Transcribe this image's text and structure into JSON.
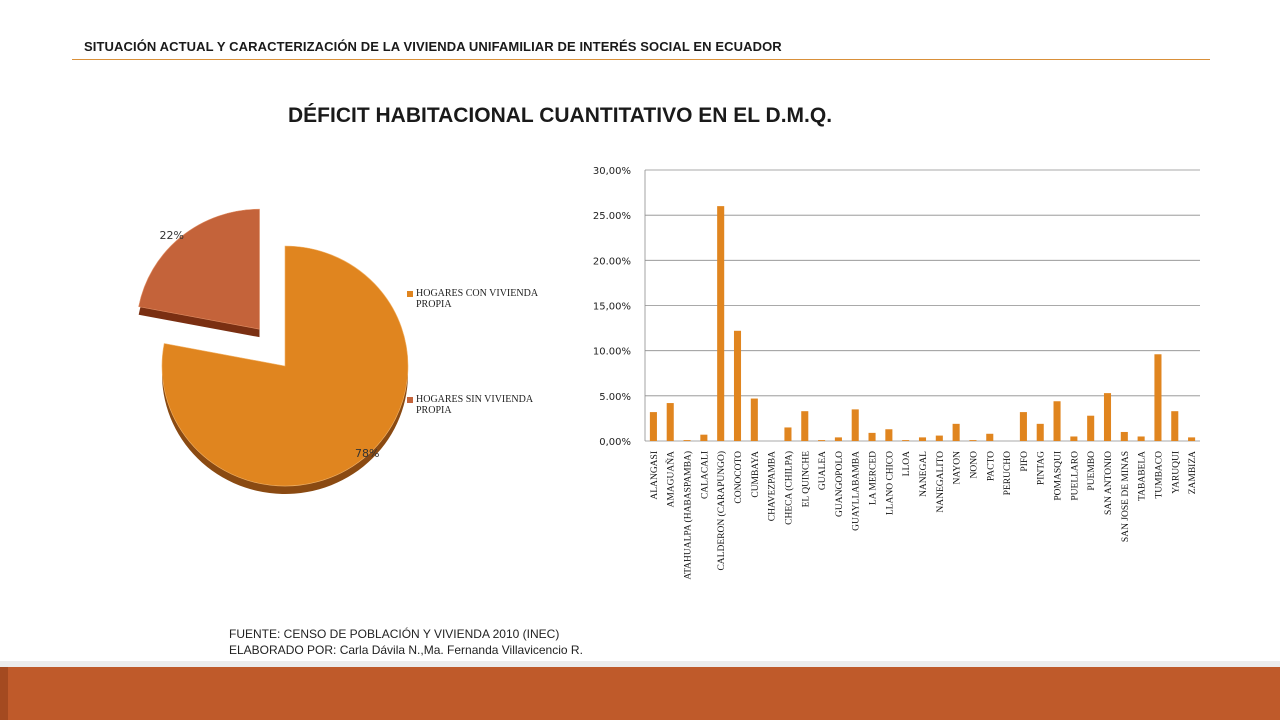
{
  "header": {
    "text": "SITUACIÓN ACTUAL Y CARACTERIZACIÓN DE LA VIVIENDA UNIFAMILIAR DE INTERÉS SOCIAL EN ECUADOR"
  },
  "title": "DÉFICIT HABITACIONAL CUANTITATIVO  EN EL D.M.Q.",
  "source": {
    "line1": "FUENTE:  CENSO DE POBLACIÓN  Y VIVIENDA 2010 (INEC)",
    "line2": "ELABORADO POR: Carla  Dávila N.,Ma. Fernanda  Villavicencio R."
  },
  "colors": {
    "accent": "#bf5a2a",
    "pie_own": "#e0851f",
    "pie_no_own": "#c4633a",
    "bar": "#e0851f",
    "rule": "#d9903a"
  },
  "chart_data": [
    {
      "type": "pie",
      "categories": [
        "HOGARES CON VIVIENDA PROPIA",
        "HOGARES SIN VIVIENDA PROPIA"
      ],
      "values": [
        78,
        22
      ],
      "data_labels": [
        "78%",
        "22%"
      ],
      "exploded": "HOGARES SIN VIVIENDA PROPIA",
      "legend": "right"
    },
    {
      "type": "bar",
      "categories": [
        "ALANGASI",
        "AMAGUAÑA",
        "ATAHUALPA (HABASPAMBA)",
        "CALACALI",
        "CALDERON (CARAPUNGO)",
        "CONOCOTO",
        "CUMBAYA",
        "CHAVEZPAMBA",
        "CHECA (CHILPA)",
        "EL QUINCHE",
        "GUALEA",
        "GUANGOPOLO",
        "GUAYLLABAMBA",
        "LA MERCED",
        "LLANO CHICO",
        "LLOA",
        "NANEGAL",
        "NANEGALITO",
        "NAYON",
        "NONO",
        "PACTO",
        "PERUCHO",
        "PIFO",
        "PINTAG",
        "POMASQUI",
        "PUELLARO",
        "PUEMBO",
        "SAN ANTONIO",
        "SAN JOSE DE MINAS",
        "TABABELA",
        "TUMBACO",
        "YARUQUI",
        "ZAMBIZA"
      ],
      "values": [
        3.2,
        4.2,
        0.1,
        0.7,
        26.0,
        12.2,
        4.7,
        0.0,
        1.5,
        3.3,
        0.1,
        0.4,
        3.5,
        0.9,
        1.3,
        0.1,
        0.4,
        0.6,
        1.9,
        0.1,
        0.8,
        0.0,
        3.2,
        1.9,
        4.4,
        0.5,
        2.8,
        5.3,
        1.0,
        0.5,
        9.6,
        3.3,
        0.4
      ],
      "yticks": [
        "0,00%",
        "5.00%",
        "10.00%",
        "15,00%",
        "20.00%",
        "25.00%",
        "30,00%"
      ],
      "ylim": [
        0,
        30
      ],
      "grid": true
    }
  ]
}
